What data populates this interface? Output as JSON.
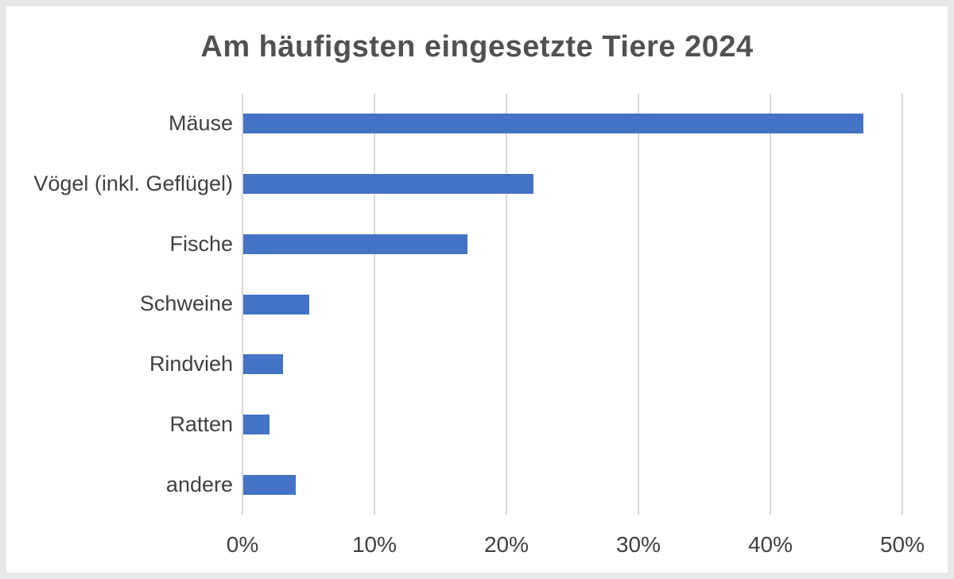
{
  "page": {
    "background_color": "#ffffff",
    "frame_border_color": "#e7e7e7"
  },
  "chart_data": {
    "type": "bar",
    "orientation": "horizontal",
    "title": "Am häufigsten eingesetzte Tiere 2024",
    "categories": [
      "Mäuse",
      "Vögel (inkl. Geflügel)",
      "Fische",
      "Schweine",
      "Rindvieh",
      "Ratten",
      "andere"
    ],
    "values": [
      47,
      22,
      17,
      5,
      3,
      2,
      4
    ],
    "unit": "%",
    "xlabel": "",
    "ylabel": "",
    "xlim": [
      0,
      50
    ],
    "x_tick_values": [
      0,
      10,
      20,
      30,
      40,
      50
    ],
    "x_tick_labels": [
      "0%",
      "10%",
      "20%",
      "30%",
      "40%",
      "50%"
    ],
    "grid": true,
    "legend": false,
    "bar_color": "#4472C4",
    "gridline_color": "#d9d9d9",
    "title_color": "#515151",
    "label_color": "#404040"
  }
}
